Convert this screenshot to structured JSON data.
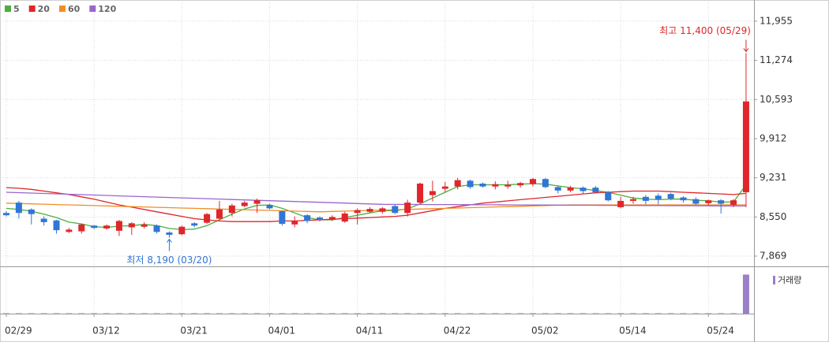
{
  "chart_data": {
    "type": "candlestick",
    "categories": [
      "02/29",
      null,
      null,
      null,
      null,
      null,
      null,
      "03/12",
      null,
      null,
      null,
      null,
      null,
      null,
      "03/21",
      null,
      null,
      null,
      null,
      null,
      null,
      "04/01",
      null,
      null,
      null,
      null,
      null,
      null,
      "04/11",
      null,
      null,
      null,
      null,
      null,
      null,
      "04/22",
      null,
      null,
      null,
      null,
      null,
      null,
      "05/02",
      null,
      null,
      null,
      null,
      null,
      null,
      "05/14",
      null,
      null,
      null,
      null,
      null,
      null,
      "05/24",
      null,
      null,
      null
    ],
    "open": [
      8620,
      8800,
      8680,
      8520,
      8490,
      8290,
      8300,
      8400,
      8350,
      8310,
      8370,
      8380,
      8400,
      8280,
      8250,
      8440,
      8450,
      8520,
      8620,
      8740,
      8780,
      8760,
      8650,
      8420,
      8580,
      8540,
      8510,
      8470,
      8620,
      8640,
      8640,
      8740,
      8620,
      8800,
      8930,
      9040,
      9080,
      9180,
      9130,
      9080,
      9080,
      9100,
      9120,
      9210,
      9070,
      9010,
      9060,
      9060,
      8980,
      8720,
      8830,
      8900,
      8920,
      8950,
      8890,
      8860,
      8790,
      8840,
      8760,
      8980
    ],
    "high": [
      8650,
      8830,
      8700,
      8560,
      8500,
      8360,
      8430,
      8410,
      8420,
      8500,
      8460,
      8460,
      8420,
      8300,
      8400,
      8460,
      8620,
      8830,
      8780,
      8830,
      8870,
      8780,
      8660,
      8560,
      8600,
      8560,
      8580,
      8640,
      8700,
      8720,
      8720,
      8760,
      8850,
      9150,
      9180,
      9160,
      9230,
      9200,
      9150,
      9170,
      9180,
      9160,
      9230,
      9230,
      9090,
      9090,
      9080,
      9090,
      9000,
      8900,
      8900,
      8930,
      8960,
      8970,
      8910,
      8890,
      8850,
      8860,
      8860,
      11400
    ],
    "low": [
      8560,
      8520,
      8420,
      8400,
      8260,
      8270,
      8260,
      8340,
      8330,
      8220,
      8240,
      8350,
      8260,
      8190,
      8230,
      8370,
      8430,
      8500,
      8560,
      8720,
      8620,
      8680,
      8400,
      8370,
      8440,
      8470,
      8480,
      8450,
      8420,
      8620,
      8610,
      8600,
      8560,
      8780,
      8820,
      8980,
      9030,
      9040,
      9060,
      9030,
      9040,
      9060,
      9080,
      9050,
      8960,
      8980,
      8950,
      8960,
      8820,
      8700,
      8780,
      8770,
      8770,
      8840,
      8800,
      8760,
      8750,
      8610,
      8720,
      8720
    ],
    "close": [
      8580,
      8620,
      8600,
      8460,
      8320,
      8330,
      8420,
      8360,
      8400,
      8480,
      8440,
      8420,
      8290,
      8240,
      8380,
      8400,
      8600,
      8680,
      8750,
      8800,
      8840,
      8700,
      8430,
      8480,
      8480,
      8510,
      8550,
      8610,
      8670,
      8690,
      8700,
      8620,
      8800,
      9130,
      9000,
      9080,
      9190,
      9070,
      9080,
      9120,
      9110,
      9140,
      9210,
      9070,
      9010,
      9060,
      9000,
      8980,
      8840,
      8830,
      8860,
      8830,
      8860,
      8870,
      8840,
      8780,
      8840,
      8780,
      8840,
      10560
    ],
    "up_color": "#e0262a",
    "down_color": "#2f76d6",
    "series": [
      {
        "name": "5",
        "color": "#4cae3f",
        "values": [
          8700,
          8680,
          8650,
          8600,
          8540,
          8460,
          8430,
          8380,
          8370,
          8390,
          8400,
          8420,
          8400,
          8350,
          8330,
          8340,
          8400,
          8500,
          8600,
          8690,
          8750,
          8760,
          8700,
          8620,
          8540,
          8500,
          8500,
          8540,
          8580,
          8620,
          8660,
          8660,
          8690,
          8780,
          8880,
          8980,
          9080,
          9110,
          9110,
          9110,
          9110,
          9120,
          9130,
          9120,
          9090,
          9060,
          9040,
          9010,
          8980,
          8930,
          8880,
          8860,
          8850,
          8860,
          8860,
          8840,
          8830,
          8810,
          8810,
          9110
        ]
      },
      {
        "name": "20",
        "color": "#e0262a",
        "values": [
          9060,
          9050,
          9030,
          9000,
          8970,
          8940,
          8900,
          8860,
          8810,
          8760,
          8720,
          8680,
          8640,
          8600,
          8560,
          8520,
          8500,
          8480,
          8470,
          8470,
          8470,
          8470,
          8480,
          8480,
          8490,
          8500,
          8510,
          8520,
          8530,
          8540,
          8550,
          8560,
          8580,
          8620,
          8660,
          8700,
          8730,
          8760,
          8790,
          8810,
          8830,
          8850,
          8870,
          8890,
          8910,
          8930,
          8950,
          8970,
          8980,
          8990,
          9000,
          9000,
          9000,
          8990,
          8980,
          8970,
          8960,
          8950,
          8940,
          8960
        ]
      },
      {
        "name": "60",
        "color": "#f28c28",
        "values": [
          8790,
          8784,
          8778,
          8772,
          8766,
          8760,
          8754,
          8748,
          8742,
          8736,
          8730,
          8724,
          8718,
          8712,
          8706,
          8700,
          8694,
          8688,
          8682,
          8676,
          8670,
          8664,
          8658,
          8652,
          8646,
          8640,
          8646,
          8652,
          8658,
          8664,
          8670,
          8676,
          8682,
          8688,
          8694,
          8700,
          8706,
          8712,
          8718,
          8724,
          8730,
          8736,
          8742,
          8748,
          8754,
          8760,
          8760,
          8760,
          8760,
          8760,
          8760,
          8760,
          8760,
          8760,
          8760,
          8760,
          8760,
          8760,
          8760,
          8760
        ]
      },
      {
        "name": "120",
        "color": "#9966cc",
        "values": [
          8980,
          8973,
          8966,
          8959,
          8952,
          8945,
          8938,
          8931,
          8924,
          8917,
          8910,
          8903,
          8896,
          8889,
          8882,
          8875,
          8868,
          8861,
          8854,
          8847,
          8840,
          8833,
          8826,
          8819,
          8812,
          8805,
          8798,
          8791,
          8784,
          8777,
          8770,
          8769,
          8768,
          8767,
          8766,
          8765,
          8764,
          8763,
          8762,
          8761,
          8760,
          8759,
          8758,
          8757,
          8756,
          8755,
          8754,
          8753,
          8752,
          8751,
          8750,
          8749,
          8748,
          8747,
          8746,
          8745,
          8744,
          8743,
          8742,
          8741
        ]
      }
    ],
    "ylim": [
      7691,
      12324
    ],
    "yticks": [
      {
        "value": 7869,
        "label": "7,869"
      },
      {
        "value": 8550,
        "label": "8,550"
      },
      {
        "value": 9231,
        "label": "9,231"
      },
      {
        "value": 9912,
        "label": "9,912"
      },
      {
        "value": 10593,
        "label": "10,593"
      },
      {
        "value": 11274,
        "label": "11,274"
      },
      {
        "value": 11955,
        "label": "11,955"
      }
    ],
    "grid": true,
    "annotations": {
      "high": "최고 11,400 (05/29)",
      "low": "최저 8,190 (03/20)"
    },
    "volume_label": "거래량",
    "volume_color": "#9b7fc9",
    "volume": [
      1,
      1,
      1,
      1,
      1,
      1,
      1,
      1,
      1,
      1,
      1,
      1,
      1,
      1,
      1,
      1,
      1,
      1,
      1,
      1,
      1,
      1,
      1,
      1,
      1,
      1,
      1,
      1,
      1,
      1,
      1,
      1,
      1,
      1,
      1,
      1,
      1,
      1,
      1,
      1,
      1,
      1,
      1,
      1,
      1,
      1,
      1,
      1,
      1,
      1,
      1,
      1,
      1,
      1,
      1,
      1,
      1,
      1,
      1,
      100
    ],
    "volume_ylim": [
      0,
      115
    ]
  }
}
